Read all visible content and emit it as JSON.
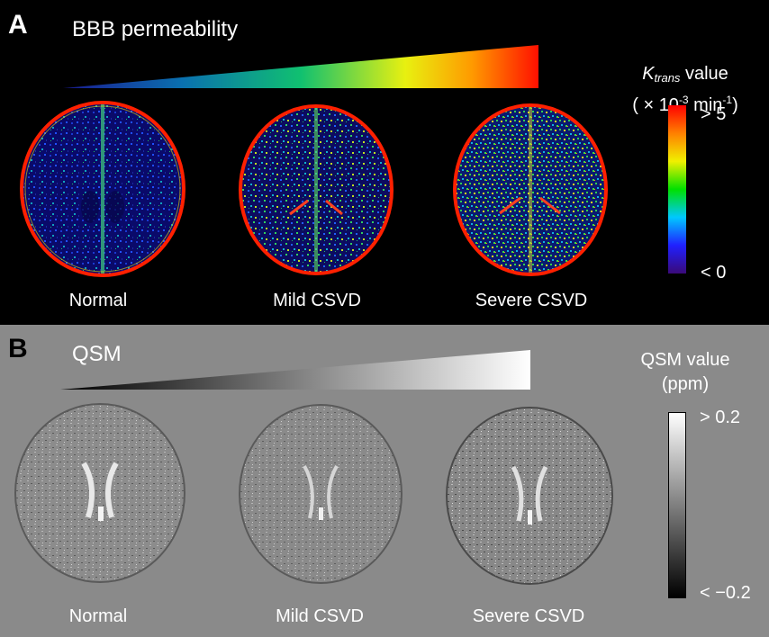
{
  "panel_a": {
    "letter": "A",
    "title": "BBB permeability",
    "colorbar": {
      "title_symbol": "K",
      "title_subscript": "trans",
      "title_suffix": " value",
      "unit_open": "( × 10",
      "unit_exp1": "-3",
      "unit_mid": " min",
      "unit_exp2": "-1",
      "unit_close": ")",
      "max_label": "> 5",
      "min_label": "< 0",
      "colors": [
        "#3a0a78",
        "#2020ff",
        "#00c8ff",
        "#00e000",
        "#f0f000",
        "#ff8000",
        "#ff0000"
      ]
    },
    "brains": [
      {
        "label": "Normal"
      },
      {
        "label": "Mild  CSVD"
      },
      {
        "label": "Severe  CSVD"
      }
    ]
  },
  "panel_b": {
    "letter": "B",
    "title": "QSM",
    "colorbar": {
      "title_line1": "QSM value",
      "title_line2": "(ppm)",
      "max_label": "> 0.2",
      "min_label": "< −0.2"
    },
    "brains": [
      {
        "label": "Normal"
      },
      {
        "label": "Mild  CSVD"
      },
      {
        "label": "Severe  CSVD"
      }
    ]
  }
}
